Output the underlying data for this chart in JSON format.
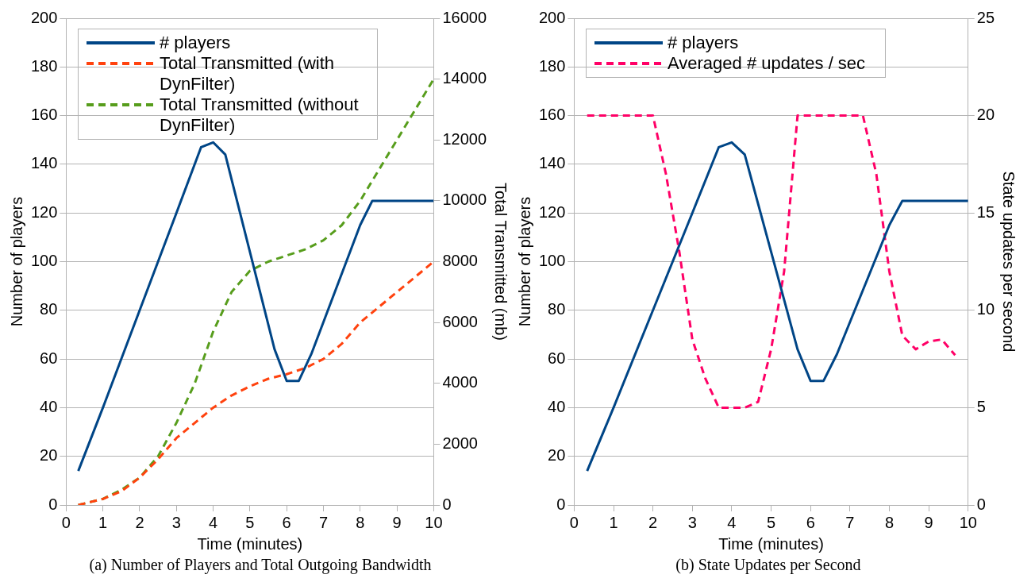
{
  "chart_data": [
    {
      "type": "line",
      "title": "(a) Number of Players and Total Outgoing Bandwidth",
      "xlabel": "Time (minutes)",
      "ylabel": "Number of players",
      "y2label": "Total Transmitted (mb)",
      "xlim": [
        0,
        10
      ],
      "xticks": [
        0,
        1,
        2,
        3,
        4,
        5,
        6,
        7,
        8,
        9,
        10
      ],
      "ylim": [
        0,
        200
      ],
      "yticks": [
        0,
        20,
        40,
        60,
        80,
        100,
        120,
        140,
        160,
        180,
        200
      ],
      "y2lim": [
        0,
        16000
      ],
      "y2ticks": [
        0,
        2000,
        4000,
        6000,
        8000,
        10000,
        12000,
        14000,
        16000
      ],
      "grid": "y",
      "legend": "top",
      "series": [
        {
          "name": "# players",
          "color": "#004586",
          "line_style": "solid",
          "x": [
            0.33,
            1,
            2,
            3,
            3.67,
            4,
            4.33,
            5.67,
            6,
            6.33,
            6.67,
            8,
            8.33,
            10
          ],
          "values": [
            14,
            40,
            80,
            120,
            147,
            149,
            144,
            64,
            51,
            51,
            62,
            115,
            125,
            125
          ]
        },
        {
          "name": "Total Transmitted (with DynFilter)",
          "color": "#ff420e",
          "line_style": "dashed",
          "axis": "y2",
          "x": [
            0.33,
            1,
            1.5,
            2,
            2.5,
            3,
            3.5,
            4,
            4.5,
            5,
            5.5,
            6,
            6.5,
            7,
            7.5,
            8,
            8.5,
            9,
            9.5,
            10
          ],
          "values": [
            0,
            200,
            450,
            900,
            1500,
            2200,
            2700,
            3200,
            3600,
            3900,
            4150,
            4300,
            4500,
            4800,
            5300,
            6000,
            6500,
            7000,
            7500,
            8000
          ]
        },
        {
          "name": "Total Transmitted (without DynFilter)",
          "color": "#579d1c",
          "line_style": "dashed",
          "axis": "y2",
          "x": [
            0.33,
            1,
            1.5,
            2,
            2.5,
            3,
            3.5,
            4,
            4.5,
            5,
            5.5,
            6,
            6.5,
            7,
            7.5,
            8,
            8.5,
            9,
            9.5,
            10
          ],
          "values": [
            0,
            200,
            500,
            900,
            1600,
            2700,
            4000,
            5700,
            7000,
            7700,
            8000,
            8200,
            8400,
            8700,
            9200,
            10000,
            11000,
            12000,
            13000,
            14000
          ]
        }
      ]
    },
    {
      "type": "line",
      "title": "(b) State Updates per Second",
      "xlabel": "Time (minutes)",
      "ylabel": "Number of players",
      "y2label": "State updates per second",
      "xlim": [
        0,
        10
      ],
      "xticks": [
        0,
        1,
        2,
        3,
        4,
        5,
        6,
        7,
        8,
        9,
        10
      ],
      "ylim": [
        0,
        200
      ],
      "yticks": [
        0,
        20,
        40,
        60,
        80,
        100,
        120,
        140,
        160,
        180,
        200
      ],
      "y2lim": [
        0,
        25
      ],
      "y2ticks": [
        0,
        5,
        10,
        15,
        20,
        25
      ],
      "grid": "y",
      "legend": "top",
      "series": [
        {
          "name": "# players",
          "color": "#004586",
          "line_style": "solid",
          "x": [
            0.33,
            1,
            2,
            3,
            3.67,
            4,
            4.33,
            5.67,
            6,
            6.33,
            6.67,
            8,
            8.33,
            10
          ],
          "values": [
            14,
            40,
            80,
            120,
            147,
            149,
            144,
            64,
            51,
            51,
            62,
            115,
            125,
            125
          ]
        },
        {
          "name": "Averaged # updates / sec",
          "color": "#ff0066",
          "line_style": "dashed",
          "axis": "y2",
          "x": [
            0.33,
            2,
            2.33,
            2.67,
            3,
            3.33,
            3.67,
            4,
            4.33,
            4.67,
            5,
            5.33,
            5.67,
            7.33,
            7.67,
            8,
            8.33,
            8.67,
            9,
            9.33,
            9.67
          ],
          "values": [
            20,
            20,
            17,
            13,
            8.5,
            6.5,
            5,
            5,
            5,
            5.3,
            8,
            12,
            20,
            20,
            17,
            12,
            8.7,
            8,
            8.4,
            8.5,
            7.7
          ]
        }
      ]
    }
  ]
}
